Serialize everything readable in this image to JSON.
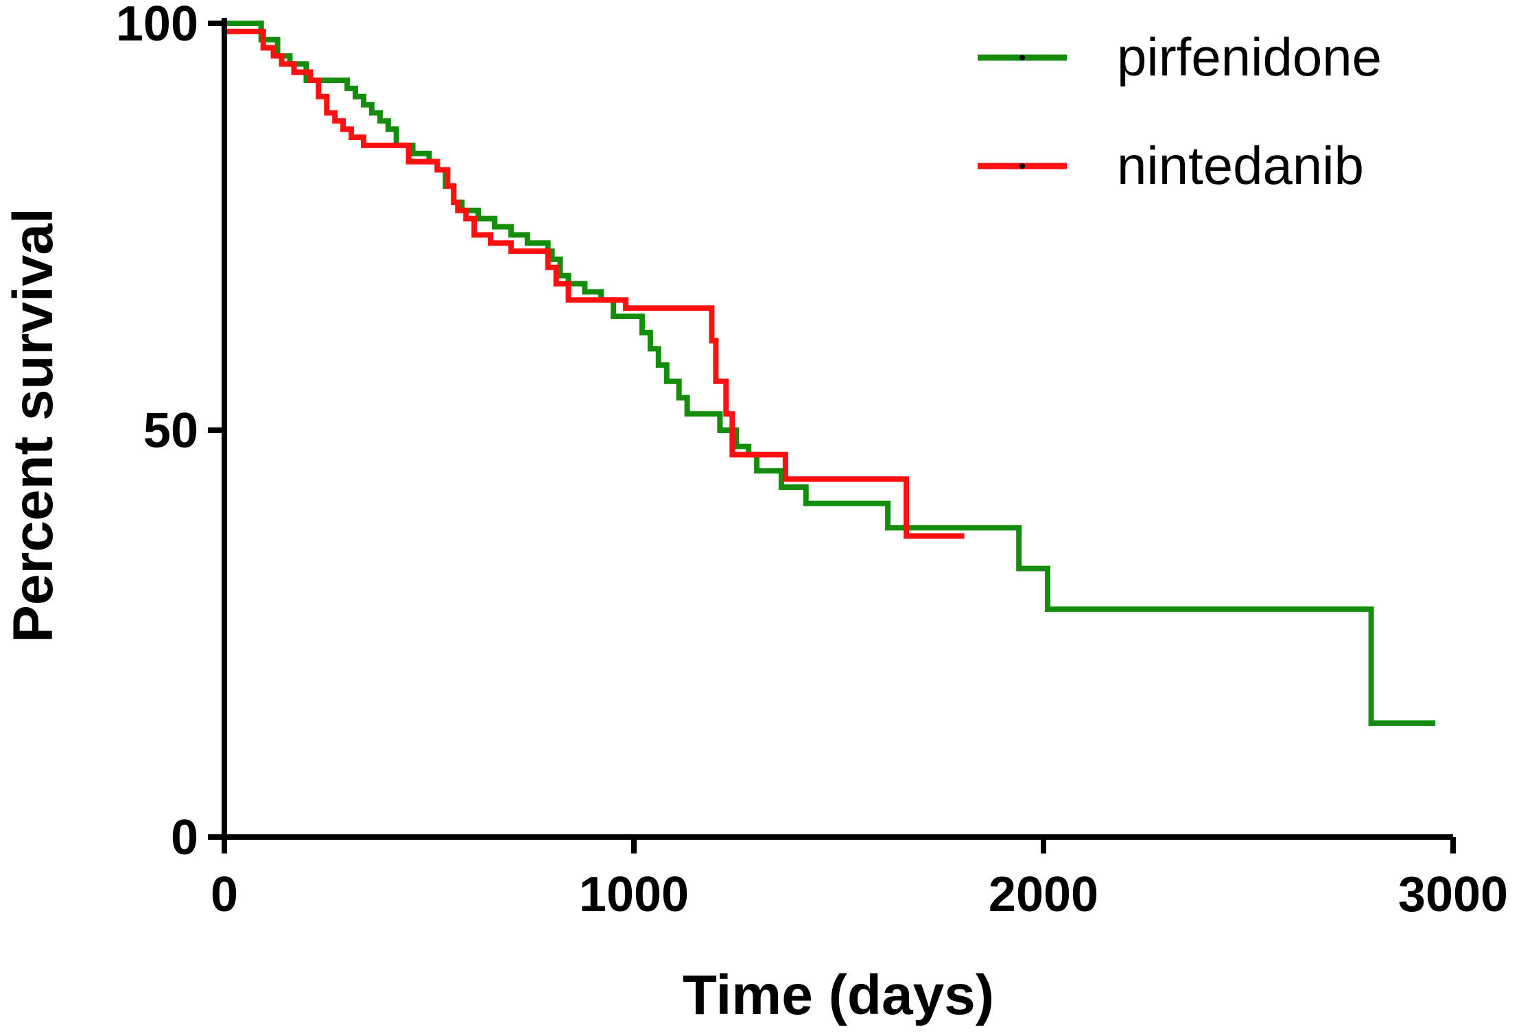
{
  "chart_data": {
    "type": "line",
    "xlabel": "Time (days)",
    "ylabel": "Percent survival",
    "xlim": [
      0,
      3000
    ],
    "ylim": [
      0,
      100
    ],
    "x_ticks": [
      0,
      1000,
      2000,
      3000
    ],
    "y_ticks": [
      0,
      50,
      100
    ],
    "x_tick_labels": [
      "0",
      "1000",
      "2000",
      "3000"
    ],
    "y_tick_labels": [
      "0",
      "50",
      "100"
    ],
    "grid": false,
    "legend_position": "top-right",
    "step": true,
    "series": [
      {
        "name": "pirfenidone",
        "color": "#148c0c",
        "x": [
          0,
          90,
          130,
          160,
          200,
          280,
          300,
          320,
          340,
          360,
          380,
          400,
          420,
          460,
          500,
          520,
          540,
          560,
          580,
          620,
          660,
          700,
          740,
          790,
          800,
          820,
          840,
          880,
          920,
          950,
          1020,
          1040,
          1060,
          1080,
          1110,
          1130,
          1210,
          1250,
          1280,
          1300,
          1360,
          1420,
          1590,
          1620,
          1910,
          1940,
          2010,
          2780,
          2800,
          2950
        ],
        "y": [
          100,
          98,
          96,
          95,
          93,
          93,
          92,
          91,
          90,
          89,
          88,
          87,
          85,
          84,
          83,
          82,
          80,
          78,
          77,
          76,
          75,
          74,
          73,
          72,
          71,
          69,
          68,
          67,
          66,
          64,
          62,
          60,
          58,
          56,
          54,
          52,
          50,
          48,
          47,
          45,
          43,
          41,
          41,
          38,
          38,
          33,
          28,
          28,
          14,
          14
        ]
      },
      {
        "name": "nintedanib",
        "color": "#ff1010",
        "x": [
          0,
          85,
          95,
          120,
          140,
          170,
          190,
          210,
          230,
          250,
          270,
          290,
          310,
          340,
          450,
          520,
          545,
          560,
          570,
          590,
          610,
          650,
          700,
          770,
          790,
          810,
          840,
          980,
          1190,
          1200,
          1225,
          1240,
          1340,
          1370,
          1650,
          1665,
          1800
        ],
        "y": [
          99,
          99,
          97,
          96,
          95,
          94,
          94,
          93,
          91,
          89,
          88,
          87,
          86,
          85,
          83,
          82,
          80,
          78,
          77,
          76,
          74,
          73,
          72,
          72,
          70,
          68,
          66,
          65,
          61,
          56,
          52,
          47,
          47,
          44,
          44,
          37,
          37
        ]
      }
    ]
  }
}
